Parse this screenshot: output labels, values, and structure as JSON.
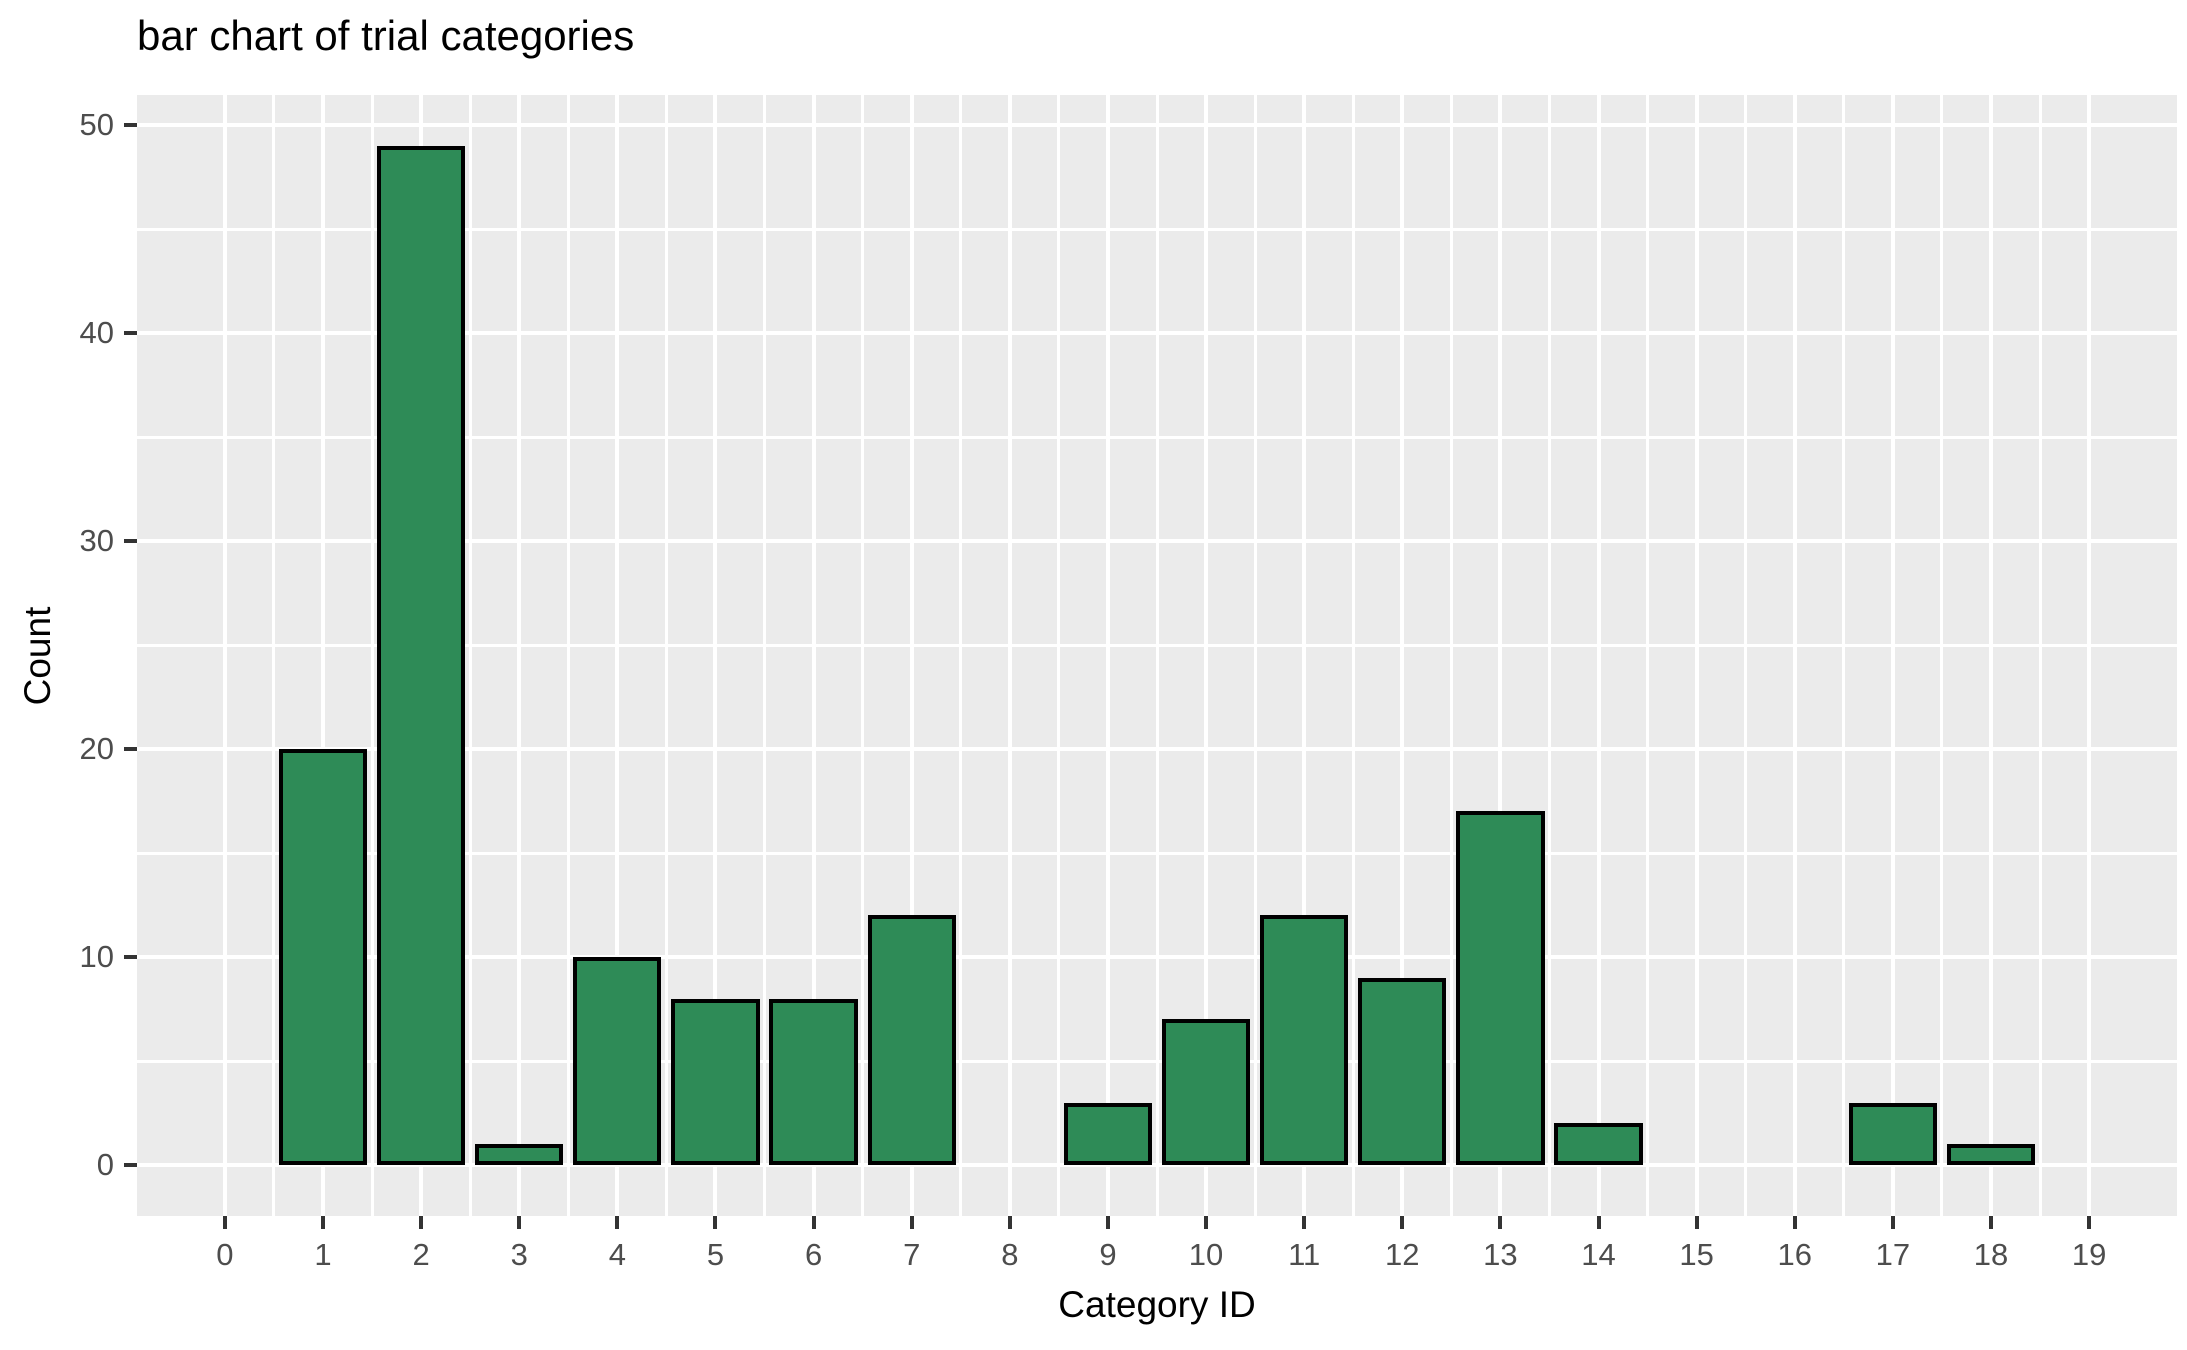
{
  "chart_data": {
    "type": "bar",
    "title": "bar chart of trial categories",
    "xlabel": "Category ID",
    "ylabel": "Count",
    "categories": [
      0,
      1,
      2,
      3,
      4,
      5,
      6,
      7,
      8,
      9,
      10,
      11,
      12,
      13,
      14,
      15,
      16,
      17,
      18,
      19
    ],
    "values": [
      0,
      20,
      49,
      1,
      10,
      8,
      8,
      12,
      0,
      3,
      7,
      12,
      9,
      17,
      2,
      0,
      0,
      3,
      1,
      0
    ],
    "x_ticks": [
      0,
      1,
      2,
      3,
      4,
      5,
      6,
      7,
      8,
      9,
      10,
      11,
      12,
      13,
      14,
      15,
      16,
      17,
      18,
      19
    ],
    "y_ticks": [
      0,
      10,
      20,
      30,
      40,
      50
    ],
    "y_minor_ticks": [
      5,
      15,
      25,
      35,
      45
    ],
    "ylim": [
      0,
      50
    ],
    "xlim": [
      0,
      19
    ],
    "bar_width": 0.9,
    "grid": "on",
    "legend_position": "none",
    "colors": {
      "bar_fill": "#2E8B57",
      "bar_border": "#000000",
      "panel_background": "#EBEBEB",
      "gridline": "#FFFFFF",
      "tick_label": "#4D4D4D",
      "tick_mark": "#333333",
      "title_text": "#000000"
    }
  }
}
